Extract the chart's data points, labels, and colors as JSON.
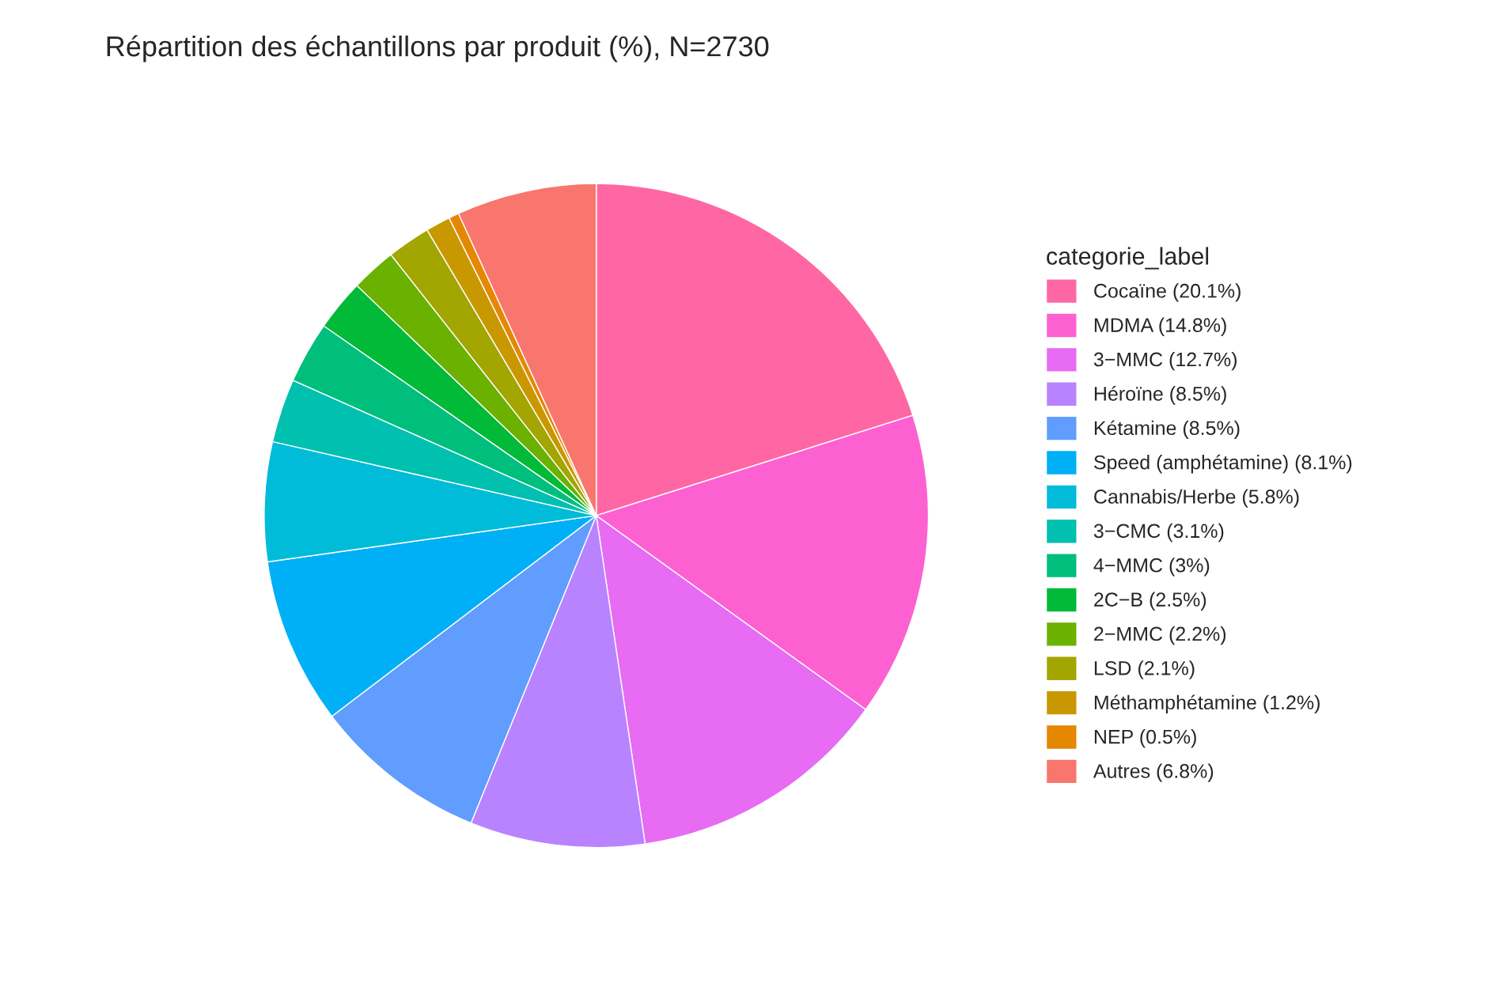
{
  "chart_data": {
    "type": "pie",
    "title": "Répartition des échantillons par produit (%), N=2730",
    "legend_title": "categorie_label",
    "legend": "right",
    "categories": [
      "Cocaïne (20.1%)",
      "MDMA (14.8%)",
      "3−MMC (12.7%)",
      "Héroïne (8.5%)",
      "Kétamine (8.5%)",
      "Speed (amphétamine) (8.1%)",
      "Cannabis/Herbe (5.8%)",
      "3−CMC (3.1%)",
      "4−MMC (3%)",
      "2C−B (2.5%)",
      "2−MMC (2.2%)",
      "LSD (2.1%)",
      "Méthamphétamine (1.2%)",
      "NEP (0.5%)",
      "Autres (6.8%)"
    ],
    "values": [
      20.1,
      14.8,
      12.7,
      8.5,
      8.5,
      8.1,
      5.8,
      3.1,
      3,
      2.5,
      2.2,
      2.1,
      1.2,
      0.5,
      6.8
    ],
    "colors": [
      "#ff67a4",
      "#fd61d1",
      "#e76bf3",
      "#b983ff",
      "#619cff",
      "#00b0f6",
      "#00bcd8",
      "#00c0af",
      "#00bf7d",
      "#00ba38",
      "#6bb100",
      "#a3a500",
      "#c99800",
      "#e58700",
      "#f8766d"
    ]
  }
}
